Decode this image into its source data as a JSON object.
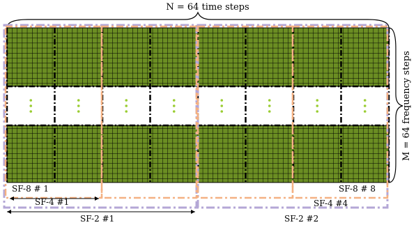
{
  "labels": {
    "top": "N = 64 time steps",
    "right": "M = 64 frequency steps",
    "sf8_first": "SF-8 # 1",
    "sf8_last": "SF-8 # 8",
    "sf4_first": "SF-4 #1",
    "sf4_last": "SF-4 #4",
    "sf2_first": "SF-2 #1",
    "sf2_second": "SF-2 #2"
  },
  "colors": {
    "cell_fill": "#6b8e23",
    "cell_grid": "#000000",
    "dots": "#9acd32",
    "sf8_border": "#000000",
    "sf4_border": "#f4b183",
    "sf2_border": "#b4a7d6"
  },
  "structure": {
    "time_steps": 64,
    "frequency_steps": 64,
    "sf8_blocks": 8,
    "sf4_blocks": 4,
    "sf2_blocks": 2
  }
}
